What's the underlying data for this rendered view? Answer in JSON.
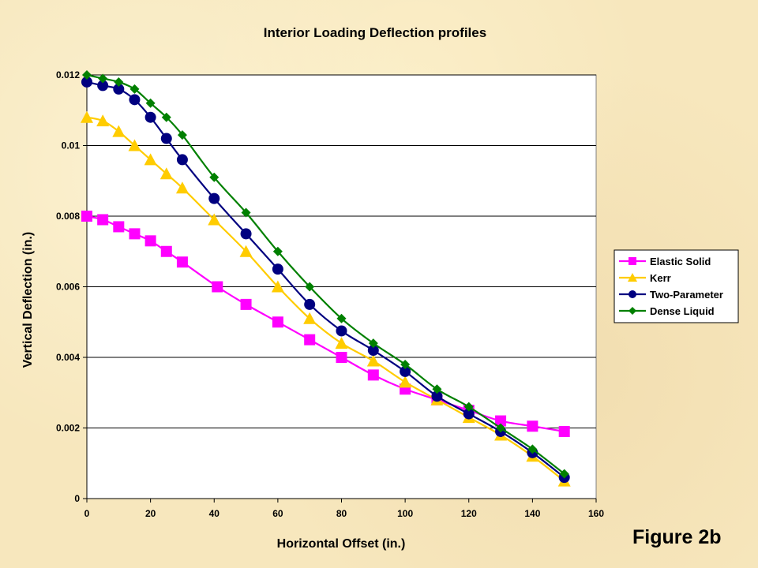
{
  "chart_data": {
    "type": "line",
    "title": "Interior Loading Deflection profiles",
    "xlabel": "Horizontal Offset (in.)",
    "ylabel": "Vertical Deflection (in.)",
    "xlim": [
      0,
      160
    ],
    "ylim": [
      0,
      0.012
    ],
    "x_ticks": [
      "0",
      "20",
      "40",
      "60",
      "80",
      "100",
      "120",
      "140",
      "160"
    ],
    "y_ticks": [
      "0",
      "0.002",
      "0.004",
      "0.006",
      "0.008",
      "0.01",
      "0.012"
    ],
    "grid": "horizontal",
    "legend_position": "right",
    "series": [
      {
        "name": "Elastic Solid",
        "color": "#ff00ff",
        "marker": "square",
        "x": [
          0,
          5,
          10,
          15,
          20,
          25,
          30,
          41,
          50,
          60,
          70,
          80,
          90,
          100,
          110,
          120,
          130,
          140,
          150
        ],
        "y": [
          0.008,
          0.0079,
          0.0077,
          0.0075,
          0.0073,
          0.007,
          0.0067,
          0.006,
          0.0055,
          0.005,
          0.0045,
          0.004,
          0.0035,
          0.0031,
          0.0028,
          0.0025,
          0.0022,
          0.00205,
          0.0019
        ]
      },
      {
        "name": "Kerr",
        "color": "#ffcc00",
        "marker": "triangle",
        "x": [
          0,
          5,
          10,
          15,
          20,
          25,
          30,
          40,
          50,
          60,
          70,
          80,
          90,
          100,
          110,
          120,
          130,
          140,
          150
        ],
        "y": [
          0.0108,
          0.0107,
          0.0104,
          0.01,
          0.0096,
          0.0092,
          0.0088,
          0.0079,
          0.007,
          0.006,
          0.0051,
          0.0044,
          0.0039,
          0.0033,
          0.0028,
          0.0023,
          0.0018,
          0.0012,
          0.0005
        ]
      },
      {
        "name": "Two-Parameter",
        "color": "#000080",
        "marker": "circle",
        "x": [
          0,
          5,
          10,
          15,
          20,
          25,
          30,
          40,
          50,
          60,
          70,
          80,
          90,
          100,
          110,
          120,
          130,
          140,
          150
        ],
        "y": [
          0.0118,
          0.0117,
          0.0116,
          0.0113,
          0.0108,
          0.0102,
          0.0096,
          0.0085,
          0.0075,
          0.0065,
          0.0055,
          0.00475,
          0.0042,
          0.0036,
          0.0029,
          0.0024,
          0.0019,
          0.0013,
          0.0006
        ]
      },
      {
        "name": "Dense Liquid",
        "color": "#008000",
        "marker": "diamond",
        "x": [
          0,
          5,
          10,
          15,
          20,
          25,
          30,
          40,
          50,
          60,
          70,
          80,
          90,
          100,
          110,
          120,
          130,
          140,
          150
        ],
        "y": [
          0.012,
          0.0119,
          0.0118,
          0.0116,
          0.0112,
          0.0108,
          0.0103,
          0.0091,
          0.0081,
          0.007,
          0.006,
          0.0051,
          0.0044,
          0.0038,
          0.0031,
          0.0026,
          0.002,
          0.0014,
          0.0007
        ]
      }
    ]
  },
  "figure_label": "Figure 2b"
}
